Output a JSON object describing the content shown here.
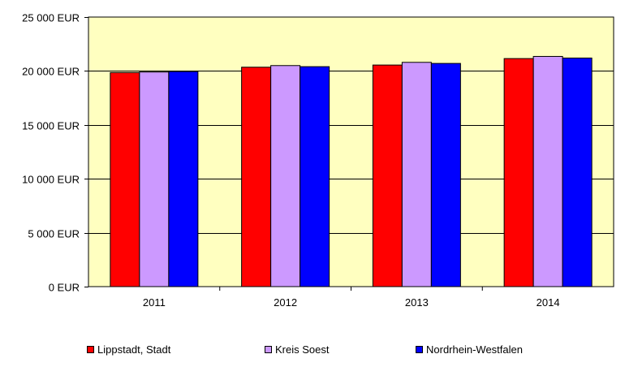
{
  "chart_data": {
    "type": "bar",
    "categories": [
      "2011",
      "2012",
      "2013",
      "2014"
    ],
    "series": [
      {
        "name": "Lippstadt, Stadt",
        "color": "#ff0000",
        "values": [
          19850,
          20350,
          20550,
          21150
        ]
      },
      {
        "name": "Kreis Soest",
        "color": "#cc99ff",
        "values": [
          19900,
          20500,
          20800,
          21350
        ]
      },
      {
        "name": "Nordrhein-Westfalen",
        "color": "#0000ff",
        "values": [
          19950,
          20400,
          20700,
          21200
        ]
      }
    ],
    "yticks": [
      "0 EUR",
      "5 000 EUR",
      "10 000 EUR",
      "15 000 EUR",
      "20 000 EUR",
      "25 000 EUR"
    ],
    "ylim": [
      0,
      25000
    ],
    "plot_background": "#ffffc0",
    "grid": true,
    "legend_position": "bottom"
  }
}
